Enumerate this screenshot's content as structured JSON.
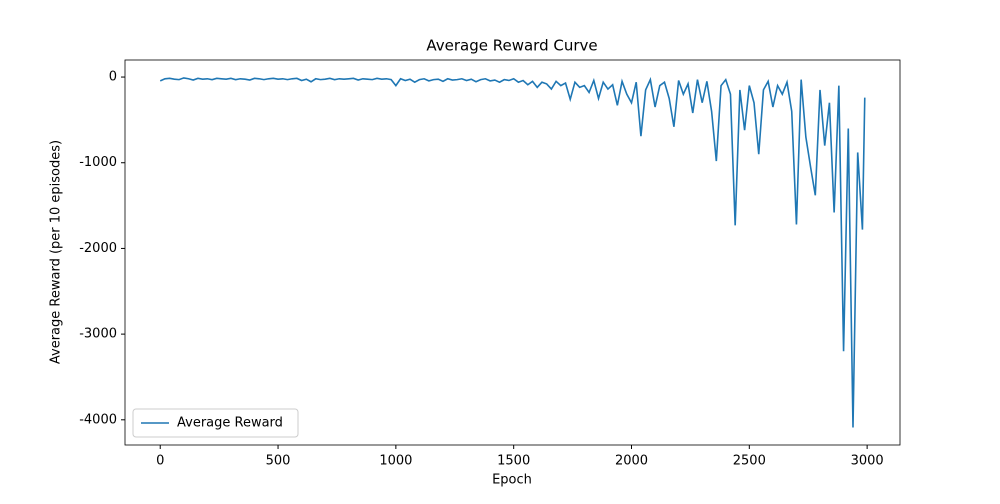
{
  "chart_data": {
    "type": "line",
    "title": "Average Reward Curve",
    "xlabel": "Epoch",
    "ylabel": "Average Reward (per 10 episodes)",
    "x": [
      0,
      20,
      40,
      60,
      80,
      100,
      120,
      140,
      160,
      180,
      200,
      220,
      240,
      260,
      280,
      300,
      320,
      340,
      360,
      380,
      400,
      420,
      440,
      460,
      480,
      500,
      520,
      540,
      560,
      580,
      600,
      620,
      640,
      660,
      680,
      700,
      720,
      740,
      760,
      780,
      800,
      820,
      840,
      860,
      880,
      900,
      920,
      940,
      960,
      980,
      1000,
      1020,
      1040,
      1060,
      1080,
      1100,
      1120,
      1140,
      1160,
      1180,
      1200,
      1220,
      1240,
      1260,
      1280,
      1300,
      1320,
      1340,
      1360,
      1380,
      1400,
      1420,
      1440,
      1460,
      1480,
      1500,
      1520,
      1540,
      1560,
      1580,
      1600,
      1620,
      1640,
      1660,
      1680,
      1700,
      1720,
      1740,
      1760,
      1780,
      1800,
      1820,
      1840,
      1860,
      1880,
      1900,
      1920,
      1940,
      1960,
      1980,
      2000,
      2020,
      2040,
      2060,
      2080,
      2100,
      2120,
      2140,
      2160,
      2180,
      2200,
      2220,
      2240,
      2260,
      2280,
      2300,
      2320,
      2340,
      2360,
      2380,
      2400,
      2420,
      2440,
      2460,
      2480,
      2500,
      2520,
      2540,
      2560,
      2580,
      2600,
      2620,
      2640,
      2660,
      2680,
      2700,
      2720,
      2740,
      2760,
      2780,
      2800,
      2820,
      2840,
      2860,
      2880,
      2900,
      2920,
      2940,
      2960,
      2980,
      2990
    ],
    "series": [
      {
        "name": "Average Reward",
        "color": "#1f77b4",
        "values": [
          -45,
          -20,
          -15,
          -25,
          -30,
          -10,
          -20,
          -35,
          -15,
          -25,
          -20,
          -30,
          -15,
          -20,
          -25,
          -15,
          -30,
          -20,
          -25,
          -35,
          -15,
          -20,
          -30,
          -20,
          -15,
          -25,
          -20,
          -30,
          -20,
          -15,
          -40,
          -25,
          -55,
          -20,
          -30,
          -25,
          -15,
          -30,
          -20,
          -25,
          -20,
          -15,
          -35,
          -20,
          -25,
          -30,
          -15,
          -25,
          -20,
          -30,
          -100,
          -20,
          -40,
          -25,
          -60,
          -30,
          -20,
          -45,
          -30,
          -25,
          -50,
          -20,
          -35,
          -30,
          -20,
          -40,
          -25,
          -55,
          -30,
          -20,
          -45,
          -35,
          -60,
          -30,
          -40,
          -20,
          -60,
          -40,
          -90,
          -50,
          -120,
          -60,
          -80,
          -140,
          -50,
          -100,
          -70,
          -260,
          -60,
          -120,
          -100,
          -180,
          -40,
          -250,
          -60,
          -140,
          -90,
          -330,
          -50,
          -200,
          -300,
          -60,
          -690,
          -150,
          -30,
          -350,
          -100,
          -60,
          -250,
          -580,
          -40,
          -200,
          -80,
          -420,
          -30,
          -300,
          -50,
          -400,
          -980,
          -100,
          -30,
          -200,
          -1730,
          -150,
          -620,
          -100,
          -300,
          -900,
          -150,
          -50,
          -350,
          -100,
          -200,
          -60,
          -400,
          -1720,
          -30,
          -700,
          -1050,
          -1380,
          -150,
          -800,
          -300,
          -1580,
          -100,
          -3200,
          -600,
          -4090,
          -880,
          -1780,
          -240
        ]
      }
    ],
    "xlim": [
      -149.5,
      3139.5
    ],
    "xticks": [
      0,
      500,
      1000,
      1500,
      2000,
      2500,
      3000
    ],
    "ylim": [
      -4294,
      199
    ],
    "yticks": [
      -4000,
      -3000,
      -2000,
      -1000,
      0
    ],
    "legend": "lower left"
  }
}
